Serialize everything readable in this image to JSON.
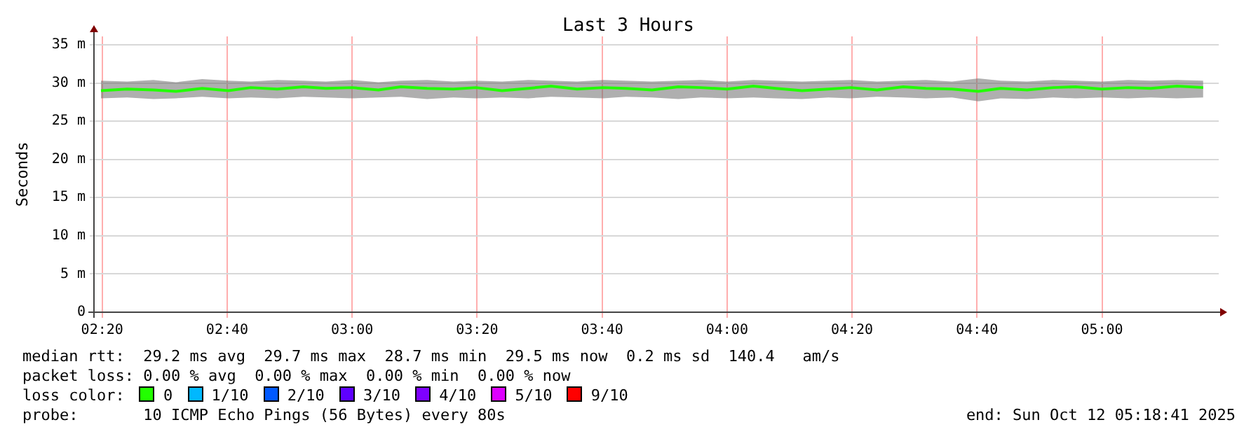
{
  "chart_data": {
    "type": "line",
    "title": "Last 3 Hours",
    "ylabel": "Seconds",
    "x": [
      2.33,
      2.4,
      2.47,
      2.53,
      2.6,
      2.67,
      2.73,
      2.8,
      2.87,
      2.93,
      3.0,
      3.07,
      3.13,
      3.2,
      3.27,
      3.33,
      3.4,
      3.47,
      3.53,
      3.6,
      3.67,
      3.73,
      3.8,
      3.87,
      3.93,
      4.0,
      4.07,
      4.13,
      4.2,
      4.27,
      4.33,
      4.4,
      4.47,
      4.53,
      4.6,
      4.67,
      4.73,
      4.8,
      4.87,
      4.93,
      5.0,
      5.07,
      5.13,
      5.2,
      5.27
    ],
    "series": [
      {
        "name": "0",
        "color": "#22ff00",
        "values": [
          29.0,
          29.2,
          29.1,
          28.9,
          29.3,
          29.0,
          29.4,
          29.2,
          29.5,
          29.3,
          29.4,
          29.1,
          29.5,
          29.3,
          29.2,
          29.4,
          29.0,
          29.3,
          29.6,
          29.2,
          29.4,
          29.3,
          29.1,
          29.5,
          29.4,
          29.2,
          29.6,
          29.3,
          29.0,
          29.2,
          29.4,
          29.1,
          29.5,
          29.3,
          29.2,
          28.9,
          29.3,
          29.1,
          29.4,
          29.5,
          29.2,
          29.4,
          29.3,
          29.6,
          29.4
        ],
        "lower": [
          28.0,
          28.1,
          27.9,
          28.0,
          28.2,
          28.0,
          28.1,
          28.0,
          28.2,
          28.1,
          28.0,
          28.1,
          28.2,
          27.9,
          28.1,
          28.0,
          28.1,
          28.0,
          28.2,
          28.1,
          28.0,
          28.2,
          28.1,
          27.9,
          28.1,
          28.0,
          28.1,
          28.0,
          27.9,
          28.1,
          28.0,
          28.2,
          28.1,
          28.0,
          28.1,
          27.6,
          28.0,
          27.9,
          28.1,
          28.0,
          28.1,
          28.0,
          28.1,
          28.0,
          28.1
        ],
        "upper": [
          30.3,
          30.2,
          30.4,
          30.1,
          30.5,
          30.3,
          30.2,
          30.4,
          30.3,
          30.2,
          30.4,
          30.1,
          30.3,
          30.4,
          30.2,
          30.3,
          30.2,
          30.4,
          30.3,
          30.2,
          30.4,
          30.3,
          30.2,
          30.3,
          30.4,
          30.2,
          30.4,
          30.3,
          30.2,
          30.3,
          30.4,
          30.2,
          30.3,
          30.4,
          30.2,
          30.6,
          30.3,
          30.2,
          30.4,
          30.3,
          30.2,
          30.4,
          30.3,
          30.4,
          30.3
        ]
      },
      {
        "name": "1/10",
        "color": "#00b8ff",
        "values": [
          null,
          null,
          null,
          null,
          null,
          null,
          null,
          null,
          null,
          null,
          null,
          null,
          null,
          null,
          null,
          null,
          null,
          null,
          null,
          null,
          null,
          null,
          null,
          null,
          null,
          null,
          null,
          null,
          null,
          null,
          null,
          null,
          null,
          null,
          null,
          null,
          null,
          null,
          null,
          null,
          null,
          null,
          null,
          null,
          null
        ]
      },
      {
        "name": "2/10",
        "color": "#0059ff",
        "values": [
          null,
          null,
          null,
          null,
          null,
          null,
          null,
          null,
          null,
          null,
          null,
          null,
          null,
          null,
          null,
          null,
          null,
          null,
          null,
          null,
          null,
          null,
          null,
          null,
          null,
          null,
          null,
          null,
          null,
          null,
          null,
          null,
          null,
          null,
          null,
          null,
          null,
          null,
          null,
          null,
          null,
          null,
          null,
          null,
          null
        ]
      },
      {
        "name": "3/10",
        "color": "#5e00ff",
        "values": [
          null,
          null,
          null,
          null,
          null,
          null,
          null,
          null,
          null,
          null,
          null,
          null,
          null,
          null,
          null,
          null,
          null,
          null,
          null,
          null,
          null,
          null,
          null,
          null,
          null,
          null,
          null,
          null,
          null,
          null,
          null,
          null,
          null,
          null,
          null,
          null,
          null,
          null,
          null,
          null,
          null,
          null,
          null,
          null,
          null
        ]
      },
      {
        "name": "4/10",
        "color": "#7e00ff",
        "values": [
          null,
          null,
          null,
          null,
          null,
          null,
          null,
          null,
          null,
          null,
          null,
          null,
          null,
          null,
          null,
          null,
          null,
          null,
          null,
          null,
          null,
          null,
          null,
          null,
          null,
          null,
          null,
          null,
          null,
          null,
          null,
          null,
          null,
          null,
          null,
          null,
          null,
          null,
          null,
          null,
          null,
          null,
          null,
          null,
          null
        ]
      },
      {
        "name": "5/10",
        "color": "#dd00ff",
        "values": [
          null,
          null,
          null,
          null,
          null,
          null,
          null,
          null,
          null,
          null,
          null,
          null,
          null,
          null,
          null,
          null,
          null,
          null,
          null,
          null,
          null,
          null,
          null,
          null,
          null,
          null,
          null,
          null,
          null,
          null,
          null,
          null,
          null,
          null,
          null,
          null,
          null,
          null,
          null,
          null,
          null,
          null,
          null,
          null,
          null
        ]
      },
      {
        "name": "9/10",
        "color": "#ff0000",
        "values": [
          null,
          null,
          null,
          null,
          null,
          null,
          null,
          null,
          null,
          null,
          null,
          null,
          null,
          null,
          null,
          null,
          null,
          null,
          null,
          null,
          null,
          null,
          null,
          null,
          null,
          null,
          null,
          null,
          null,
          null,
          null,
          null,
          null,
          null,
          null,
          null,
          null,
          null,
          null,
          null,
          null,
          null,
          null,
          null,
          null
        ]
      }
    ],
    "xlim": [
      2.3114,
      5.3114
    ],
    "xticks": [
      {
        "value": 2.3333,
        "label": "02:20"
      },
      {
        "value": 2.6667,
        "label": "02:40"
      },
      {
        "value": 3,
        "label": "03:00"
      },
      {
        "value": 3.3333,
        "label": "03:20"
      },
      {
        "value": 3.6667,
        "label": "03:40"
      },
      {
        "value": 4,
        "label": "04:00"
      },
      {
        "value": 4.3333,
        "label": "04:20"
      },
      {
        "value": 4.6667,
        "label": "04:40"
      },
      {
        "value": 5,
        "label": "05:00"
      }
    ],
    "ylim": [
      0,
      36.1
    ],
    "yticks": [
      0,
      {
        "value": 5,
        "label": "5 m"
      },
      {
        "value": 10,
        "label": "10 m"
      },
      {
        "value": 15,
        "label": "15 m"
      },
      {
        "value": 20,
        "label": "20 m"
      },
      {
        "value": 25,
        "label": "25 m"
      },
      {
        "value": 30,
        "label": "30 m"
      },
      {
        "value": 35,
        "label": "35 m"
      }
    ],
    "grid": true,
    "legend": "bottom",
    "legend_title": "loss color:",
    "marker": "none",
    "line_style": "solid",
    "annotations": [
      "median rtt:  29.2 ms avg  29.7 ms max  28.7 ms min  29.5 ms now  0.2 ms sd  140.4   am/s",
      "packet loss: 0.00 % avg  0.00 % max  0.00 % min  0.00 % now",
      "probe:       10 ICMP Echo Pings (56 Bytes) every 80s",
      "end: Sun Oct 12 05:18:41 2025"
    ]
  }
}
